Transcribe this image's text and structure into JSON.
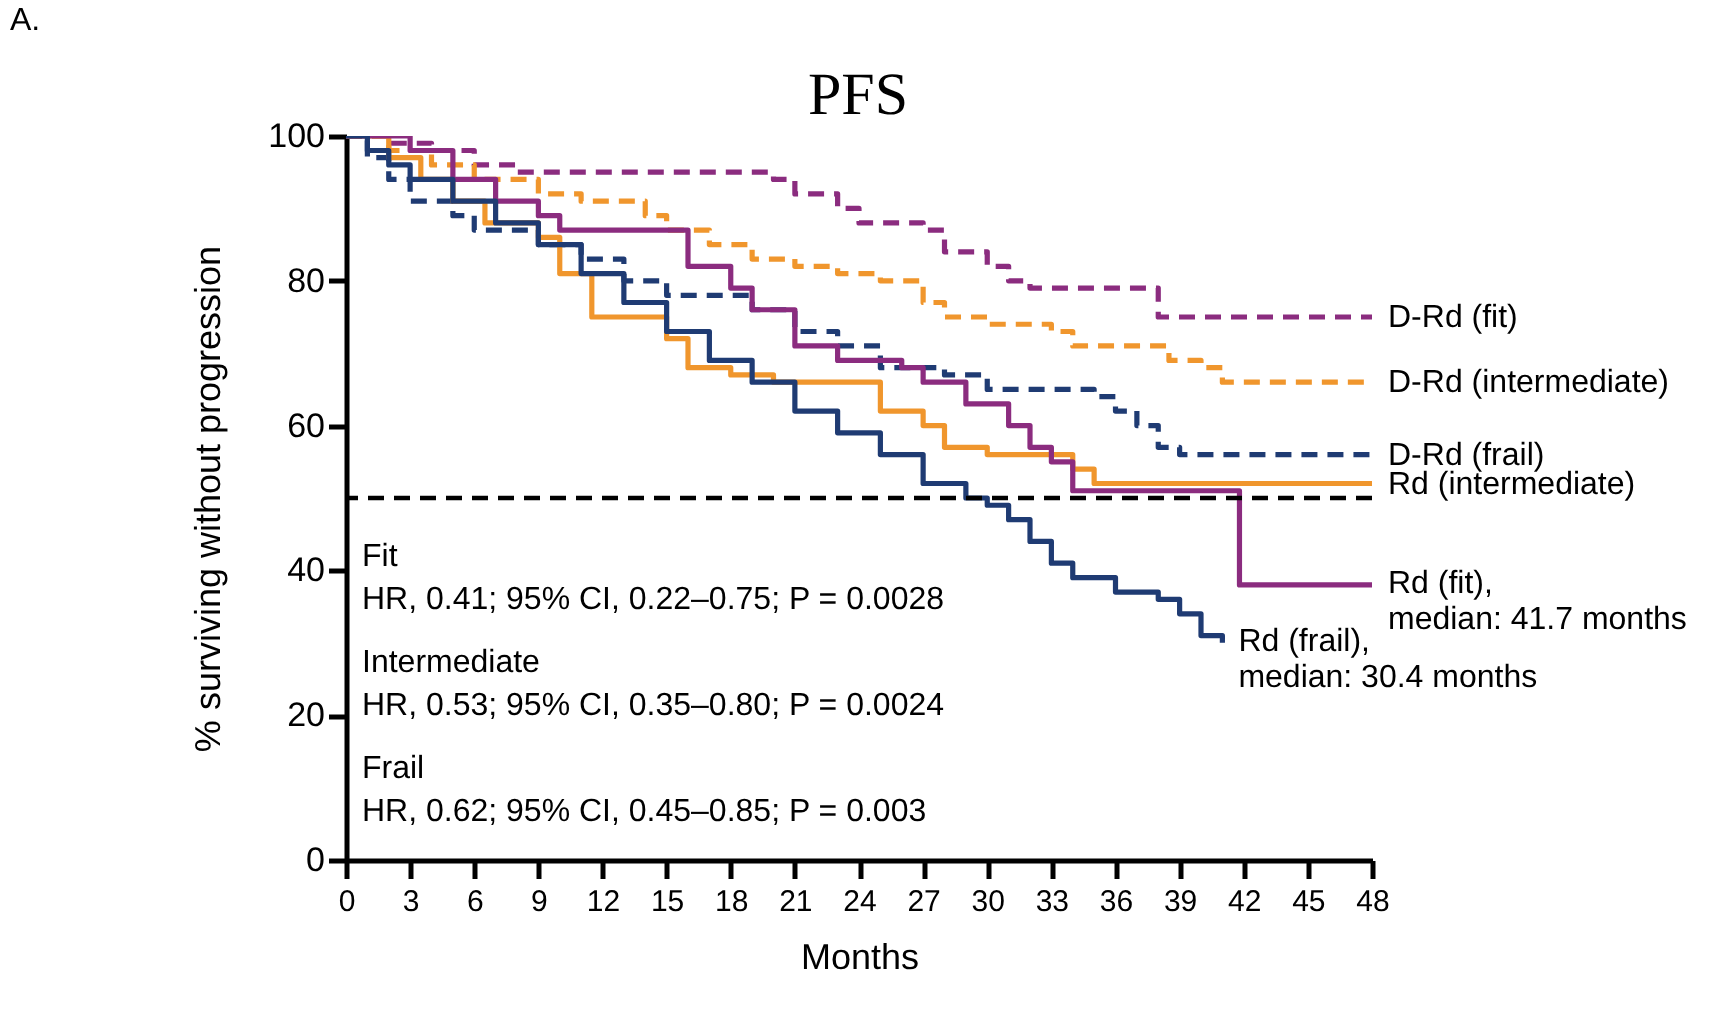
{
  "chart_data": {
    "type": "step",
    "title": "PFS",
    "xlabel": "Months",
    "ylabel": "% surviving without progression",
    "xlim": [
      0,
      48
    ],
    "ylim": [
      0,
      100
    ],
    "xticks": [
      0,
      3,
      6,
      9,
      12,
      15,
      18,
      21,
      24,
      27,
      30,
      33,
      36,
      39,
      42,
      45,
      48
    ],
    "yticks": [
      0,
      20,
      40,
      60,
      80,
      100
    ],
    "grid": false,
    "series": [
      {
        "name": "D-Rd (fit)",
        "color": "#8b2c7f",
        "line_style": "dashed",
        "x": [
          0,
          2,
          4,
          6,
          8,
          20,
          21,
          23,
          24,
          27,
          28,
          30,
          31,
          32,
          37,
          38,
          48
        ],
        "values": [
          100,
          99,
          98,
          96,
          95,
          94,
          92,
          90,
          88,
          87,
          84,
          82,
          80,
          79,
          79,
          75,
          75
        ]
      },
      {
        "name": "D-Rd (intermediate)",
        "color": "#f0962d",
        "line_style": "dashed",
        "x": [
          0,
          2,
          4,
          6,
          9,
          11,
          14,
          15,
          17,
          19,
          21,
          23,
          25,
          27,
          28,
          30,
          33,
          34,
          38,
          38.5,
          40,
          41,
          48
        ],
        "values": [
          100,
          98,
          96,
          94,
          92,
          91,
          89,
          87,
          85,
          83,
          82,
          81,
          80,
          77,
          75,
          74,
          73,
          71,
          71,
          69,
          68,
          66,
          66
        ]
      },
      {
        "name": "D-Rd (frail)",
        "color": "#1f3b73",
        "line_style": "dashed",
        "x": [
          0,
          1,
          2,
          3,
          5,
          6,
          9,
          11,
          13,
          15,
          19,
          21,
          23,
          25,
          28,
          30,
          35,
          36,
          37,
          38,
          39,
          48
        ],
        "values": [
          100,
          97,
          94,
          91,
          89,
          87,
          85,
          83,
          80,
          78,
          76,
          73,
          71,
          68,
          67,
          65,
          64,
          62,
          60,
          57,
          56,
          56
        ]
      },
      {
        "name": "Rd (intermediate)",
        "color": "#f0962d",
        "line_style": "solid",
        "x": [
          0,
          2,
          3.5,
          5,
          6.5,
          9,
          10,
          11.5,
          15,
          16,
          18,
          20,
          24,
          25,
          27,
          28,
          30,
          34,
          35,
          48
        ],
        "values": [
          100,
          97,
          94,
          91,
          88,
          86,
          81,
          75,
          72,
          68,
          67,
          66,
          66,
          62,
          60,
          57,
          56,
          54,
          52,
          52
        ]
      },
      {
        "name": "Rd (fit), median: 41.7 months",
        "color": "#8b2c7f",
        "line_style": "solid",
        "x": [
          0,
          3,
          5,
          7,
          9,
          10,
          15,
          16,
          18,
          19,
          21,
          23,
          26,
          27,
          29,
          31,
          32,
          33,
          34,
          41.7,
          41.8,
          48
        ],
        "values": [
          100,
          98,
          94,
          91,
          89,
          87,
          87,
          82,
          79,
          76,
          71,
          69,
          68,
          66,
          63,
          60,
          57,
          55,
          51,
          51,
          38,
          38
        ]
      },
      {
        "name": "Rd (frail), median: 30.4 months",
        "color": "#1f3b73",
        "line_style": "solid",
        "x": [
          0,
          1,
          2,
          3,
          5,
          7,
          9,
          11,
          13,
          15,
          17,
          19,
          21,
          23,
          25,
          27,
          29,
          30,
          31,
          32,
          33,
          34,
          36,
          38,
          39,
          40,
          41
        ],
        "values": [
          100,
          98,
          96,
          94,
          91,
          88,
          85,
          81,
          77,
          73,
          69,
          66,
          62,
          59,
          56,
          52,
          50,
          49,
          47,
          44,
          41,
          39,
          37,
          36,
          34,
          31,
          30
        ]
      }
    ],
    "ref_lines": [
      {
        "axis": "y",
        "value": 50,
        "color": "#000000",
        "line_style": "dashed"
      }
    ],
    "annotations": [
      "A.",
      "Fit",
      "HR, 0.41; 95% CI, 0.22–0.75; P = 0.0028",
      "Intermediate",
      "HR, 0.53; 95% CI, 0.35–0.80; P = 0.0024",
      "Frail",
      "HR, 0.62; 95% CI, 0.45–0.85; P = 0.003"
    ]
  }
}
